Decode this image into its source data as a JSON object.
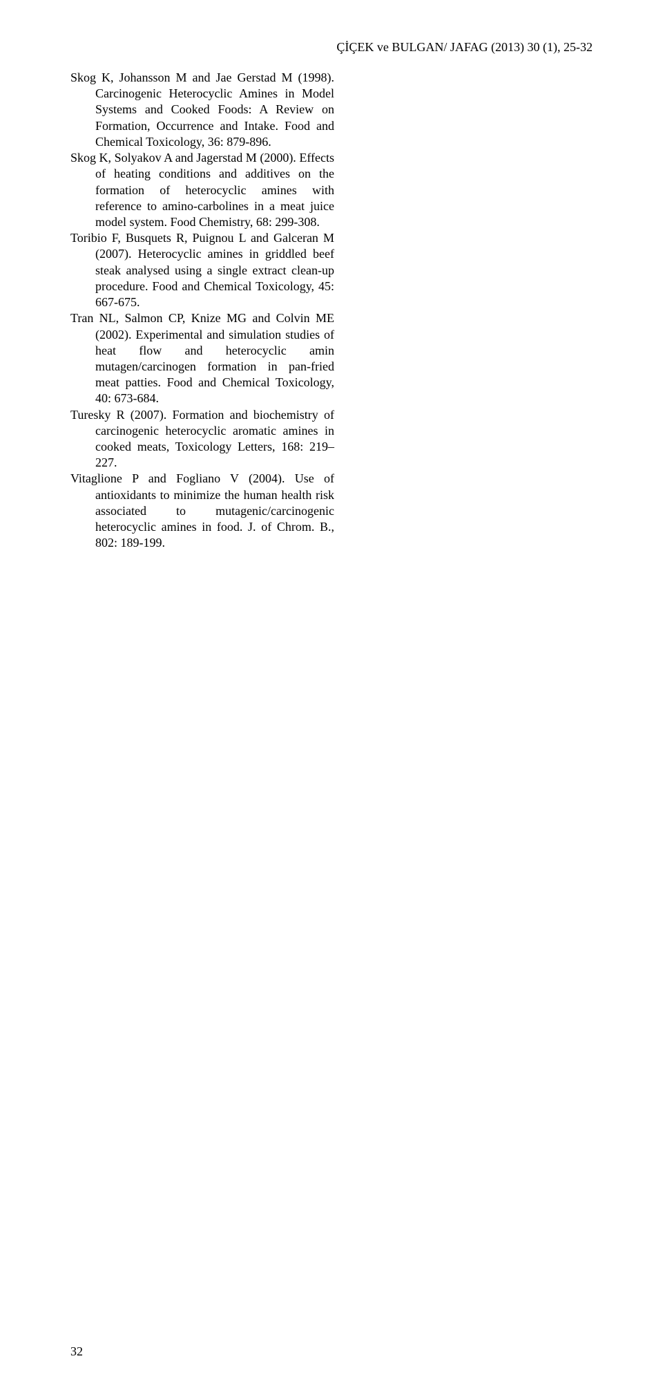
{
  "header": {
    "text": "ÇİÇEK ve BULGAN/ JAFAG (2013) 30 (1), 25-32"
  },
  "references": {
    "r1": "Skog K, Johansson M and Jae Gerstad M (1998). Carcinogenic Heterocyclic Amines in Model Systems and Cooked Foods: A Review on Formation, Occurrence and Intake. Food and Chemical Toxicology, 36: 879-896.",
    "r2": "Skog K, Solyakov A and Jagerstad M (2000). Effects of heating conditions and additives on the formation of heterocyclic amines with reference to amino-carbolines in a meat juice model system. Food Chemistry, 68: 299-308.",
    "r3": "Toribio F, Busquets R, Puignou L and Galceran M (2007). Heterocyclic amines in griddled beef steak analysed using a single extract clean-up procedure. Food and Chemical Toxicology, 45: 667-675.",
    "r4": "Tran NL, Salmon CP, Knize MG and Colvin ME (2002). Experimental and simulation studies of heat flow and heterocyclic amin mutagen/carcinogen formation in pan-fried meat patties. Food and Chemical Toxicology, 40: 673-684.",
    "r5": "Turesky R (2007). Formation and biochemistry of carcinogenic heterocyclic aromatic amines in cooked meats, Toxicology Letters, 168: 219–227.",
    "r6": "Vitaglione P and Fogliano V (2004). Use of antioxidants to minimize the human health risk associated to mutagenic/carcinogenic heterocyclic amines in food. J. of Chrom. B., 802: 189-199."
  },
  "pageNumber": "32"
}
